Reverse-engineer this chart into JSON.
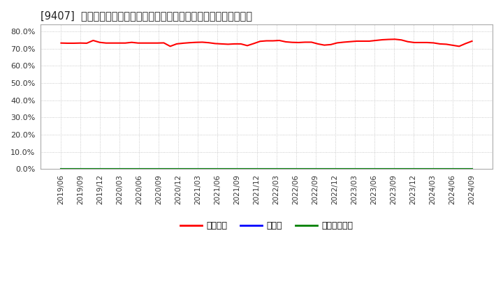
{
  "title": "[9407]  自己資本、のれん、繰延税金資産の総資産に対する比率の推移",
  "background_color": "#ffffff",
  "plot_bg_color": "#ffffff",
  "grid_color": "#bbbbbb",
  "ylim": [
    0.0,
    0.84
  ],
  "yticks": [
    0.0,
    0.1,
    0.2,
    0.3,
    0.4,
    0.5,
    0.6,
    0.7,
    0.8
  ],
  "x_labels": [
    "2019/06",
    "2019/09",
    "2019/12",
    "2020/03",
    "2020/06",
    "2020/09",
    "2020/12",
    "2021/03",
    "2021/06",
    "2021/09",
    "2021/12",
    "2022/03",
    "2022/06",
    "2022/09",
    "2022/12",
    "2023/03",
    "2023/06",
    "2023/09",
    "2023/12",
    "2024/03",
    "2024/06",
    "2024/09"
  ],
  "series": {
    "自己資本": {
      "color": "#ff0000",
      "values": [
        0.733,
        0.732,
        0.732,
        0.733,
        0.732,
        0.748,
        0.737,
        0.733,
        0.733,
        0.733,
        0.733,
        0.737,
        0.733,
        0.733,
        0.733,
        0.733,
        0.734,
        0.714,
        0.728,
        0.732,
        0.735,
        0.737,
        0.738,
        0.735,
        0.73,
        0.728,
        0.726,
        0.728,
        0.728,
        0.718,
        0.73,
        0.743,
        0.746,
        0.746,
        0.748,
        0.74,
        0.737,
        0.736,
        0.738,
        0.738,
        0.728,
        0.721,
        0.724,
        0.734,
        0.738,
        0.741,
        0.744,
        0.744,
        0.744,
        0.748,
        0.752,
        0.754,
        0.755,
        0.751,
        0.741,
        0.736,
        0.736,
        0.736,
        0.734,
        0.728,
        0.726,
        0.72,
        0.714,
        0.73,
        0.744
      ]
    },
    "のれん": {
      "color": "#0000ff",
      "values": [
        0.0,
        0.0,
        0.0,
        0.0,
        0.0,
        0.0,
        0.0,
        0.0,
        0.0,
        0.0,
        0.0,
        0.0,
        0.0,
        0.0,
        0.0,
        0.0,
        0.0,
        0.0,
        0.0,
        0.0,
        0.0,
        0.0
      ]
    },
    "繰延税金資産": {
      "color": "#008000",
      "values": [
        0.0,
        0.0,
        0.0,
        0.0,
        0.0,
        0.0,
        0.0,
        0.0,
        0.0,
        0.0,
        0.0,
        0.0,
        0.0,
        0.0,
        0.0,
        0.0,
        0.0,
        0.0,
        0.0,
        0.0,
        0.0,
        0.0
      ]
    }
  },
  "legend_entries": [
    "自己資本",
    "のれん",
    "繰延税金資産"
  ],
  "legend_colors": [
    "#ff0000",
    "#0000ff",
    "#008000"
  ]
}
